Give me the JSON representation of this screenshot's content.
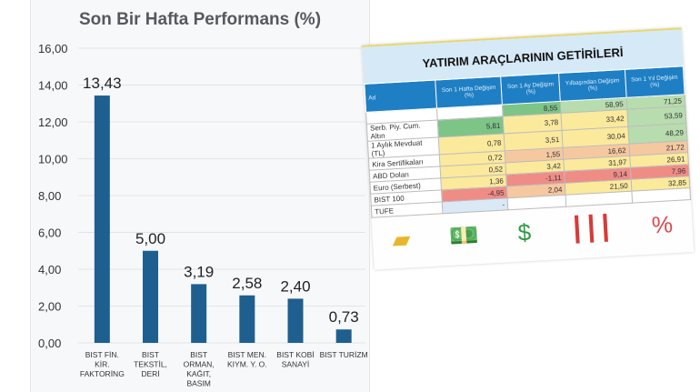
{
  "chart_data": {
    "type": "bar",
    "title": "Son Bir Hafta Performans (%)",
    "categories": [
      [
        "BIST FİN.",
        "KİR.",
        "FAKTORİNG"
      ],
      [
        "BIST",
        "TEKSTİL,",
        "DERİ"
      ],
      [
        "BIST",
        "ORMAN,",
        "KAĞIT,",
        "BASIM"
      ],
      [
        "BIST MEN.",
        "KIYM. Y. O."
      ],
      [
        "BIST KOBİ",
        "SANAYİ"
      ],
      [
        "BIST TURİZM"
      ]
    ],
    "values": [
      13.43,
      5.0,
      3.19,
      2.58,
      2.4,
      0.73
    ],
    "data_labels": [
      "13,43",
      "5,00",
      "3,19",
      "2,58",
      "2,40",
      "0,73"
    ],
    "ylim": [
      0,
      16
    ],
    "yticks": [
      "0,00",
      "2,00",
      "4,00",
      "6,00",
      "8,00",
      "10,00",
      "12,00",
      "14,00",
      "16,00"
    ],
    "grid": true,
    "bar_color": "#1f5f8f"
  },
  "table": {
    "title": "YATIRIM ARAÇLARININ GETİRİLERİ",
    "headers": [
      "Ad",
      "Son 1 Hafta Değişim (%)",
      "Son 1 Ay Değişim (%)",
      "Yılbaşından Değişim (%)",
      "Son 1 Yıl Değişim (%)"
    ],
    "rows": [
      [
        "",
        "",
        "8,55",
        "58,95",
        "71,25"
      ],
      [
        "Serb. Piy. Cum. Altın",
        "5,81",
        "3,78",
        "33,42",
        "53,59"
      ],
      [
        "1 Aylık Mevduat (TL)",
        "0,78",
        "3,51",
        "30,04",
        "48,29"
      ],
      [
        "Kira Sertifikaları",
        "0,72",
        "1,55",
        "16,62",
        "21,72"
      ],
      [
        "ABD Doları",
        "0,52",
        "3,42",
        "31,97",
        "26,91"
      ],
      [
        "Euro (Serbest)",
        "1,36",
        "-1,11",
        "9,14",
        "7,96"
      ],
      [
        "BIST 100",
        "-4,95",
        "2,04",
        "21,50",
        "32,85"
      ],
      [
        "TUFE",
        "-",
        "",
        "",
        ""
      ]
    ],
    "cell_classes": [
      [
        "w",
        "w",
        "g",
        "lg",
        "lg"
      ],
      [
        "name",
        "g",
        "y",
        "y",
        "lg"
      ],
      [
        "name",
        "y",
        "y",
        "y",
        "lg"
      ],
      [
        "name",
        "y",
        "o",
        "o",
        "o"
      ],
      [
        "name",
        "y",
        "y",
        "y",
        "y"
      ],
      [
        "name",
        "y",
        "r",
        "r",
        "r"
      ],
      [
        "name",
        "r",
        "o",
        "y",
        "y"
      ],
      [
        "name b",
        "b",
        "w",
        "w",
        "w"
      ]
    ],
    "icons": [
      "gold-bars-icon",
      "cash-icon",
      "money-bag-icon",
      "candlestick-chart-icon",
      "percent-donut-icon"
    ]
  }
}
